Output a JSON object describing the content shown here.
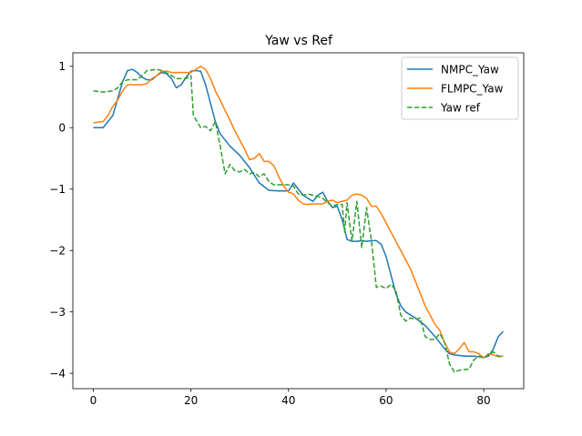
{
  "chart_data": {
    "type": "line",
    "title": "Yaw vs Ref",
    "xlabel": "",
    "ylabel": "",
    "xlim": [
      -4.2,
      88.2
    ],
    "ylim": [
      -4.25,
      1.22
    ],
    "xticks": [
      0,
      20,
      40,
      60,
      80
    ],
    "yticks": [
      1,
      0,
      -1,
      -2,
      -3,
      -4
    ],
    "xtick_labels": [
      "0",
      "20",
      "40",
      "60",
      "80"
    ],
    "ytick_labels": [
      "1",
      "0",
      "−1",
      "−2",
      "−3",
      "−4"
    ],
    "grid": false,
    "legend_position": "top-right",
    "series": [
      {
        "name": "NMPC_Yaw",
        "color": "#1f77b4",
        "style": "solid",
        "points": [
          [
            0,
            0.0
          ],
          [
            2,
            0.0
          ],
          [
            4,
            0.2
          ],
          [
            6,
            0.75
          ],
          [
            7,
            0.93
          ],
          [
            8,
            0.95
          ],
          [
            9,
            0.9
          ],
          [
            10,
            0.82
          ],
          [
            11,
            0.78
          ],
          [
            12,
            0.78
          ],
          [
            13,
            0.85
          ],
          [
            14,
            0.9
          ],
          [
            15,
            0.88
          ],
          [
            16,
            0.8
          ],
          [
            17,
            0.65
          ],
          [
            18,
            0.7
          ],
          [
            19,
            0.82
          ],
          [
            20,
            0.92
          ],
          [
            21,
            0.93
          ],
          [
            22,
            0.92
          ],
          [
            23,
            0.7
          ],
          [
            24,
            0.4
          ],
          [
            25,
            0.1
          ],
          [
            26,
            -0.1
          ],
          [
            28,
            -0.3
          ],
          [
            30,
            -0.45
          ],
          [
            32,
            -0.65
          ],
          [
            34,
            -0.9
          ],
          [
            36,
            -1.02
          ],
          [
            38,
            -1.03
          ],
          [
            40,
            -1.03
          ],
          [
            41,
            -0.9
          ],
          [
            42,
            -1.0
          ],
          [
            43,
            -1.1
          ],
          [
            44,
            -1.15
          ],
          [
            45,
            -1.2
          ],
          [
            46,
            -1.1
          ],
          [
            47,
            -1.05
          ],
          [
            48,
            -1.2
          ],
          [
            49,
            -1.3
          ],
          [
            50,
            -1.28
          ],
          [
            51,
            -1.5
          ],
          [
            52,
            -1.82
          ],
          [
            53,
            -1.85
          ],
          [
            54,
            -1.85
          ],
          [
            55,
            -1.84
          ],
          [
            56,
            -1.85
          ],
          [
            57,
            -1.84
          ],
          [
            58,
            -1.84
          ],
          [
            59,
            -1.9
          ],
          [
            60,
            -2.1
          ],
          [
            61,
            -2.4
          ],
          [
            62,
            -2.7
          ],
          [
            63,
            -2.9
          ],
          [
            64,
            -3.0
          ],
          [
            66,
            -3.1
          ],
          [
            68,
            -3.22
          ],
          [
            70,
            -3.4
          ],
          [
            71,
            -3.5
          ],
          [
            72,
            -3.6
          ],
          [
            73,
            -3.68
          ],
          [
            74,
            -3.7
          ],
          [
            76,
            -3.72
          ],
          [
            78,
            -3.72
          ],
          [
            80,
            -3.74
          ],
          [
            81,
            -3.72
          ],
          [
            82,
            -3.6
          ],
          [
            83,
            -3.4
          ],
          [
            84,
            -3.32
          ]
        ]
      },
      {
        "name": "FLMPC_Yaw",
        "color": "#ff7f0e",
        "style": "solid",
        "points": [
          [
            0,
            0.08
          ],
          [
            2,
            0.1
          ],
          [
            3,
            0.2
          ],
          [
            4,
            0.35
          ],
          [
            5,
            0.45
          ],
          [
            6,
            0.6
          ],
          [
            7,
            0.7
          ],
          [
            10,
            0.7
          ],
          [
            11,
            0.72
          ],
          [
            12,
            0.8
          ],
          [
            13,
            0.85
          ],
          [
            14,
            0.92
          ],
          [
            15,
            0.92
          ],
          [
            16,
            0.9
          ],
          [
            17,
            0.9
          ],
          [
            20,
            0.9
          ],
          [
            21,
            0.95
          ],
          [
            22,
            1.0
          ],
          [
            23,
            0.95
          ],
          [
            24,
            0.8
          ],
          [
            25,
            0.6
          ],
          [
            26,
            0.45
          ],
          [
            27,
            0.28
          ],
          [
            28,
            0.12
          ],
          [
            29,
            -0.05
          ],
          [
            30,
            -0.2
          ],
          [
            31,
            -0.35
          ],
          [
            32,
            -0.52
          ],
          [
            33,
            -0.5
          ],
          [
            34,
            -0.42
          ],
          [
            35,
            -0.55
          ],
          [
            36,
            -0.55
          ],
          [
            37,
            -0.62
          ],
          [
            38,
            -0.8
          ],
          [
            39,
            -0.95
          ],
          [
            40,
            -1.05
          ],
          [
            41,
            -1.08
          ],
          [
            42,
            -1.18
          ],
          [
            43,
            -1.24
          ],
          [
            44,
            -1.25
          ],
          [
            45,
            -1.24
          ],
          [
            46,
            -1.24
          ],
          [
            47,
            -1.24
          ],
          [
            48,
            -1.2
          ],
          [
            49,
            -1.18
          ],
          [
            50,
            -1.22
          ],
          [
            51,
            -1.2
          ],
          [
            52,
            -1.18
          ],
          [
            53,
            -1.1
          ],
          [
            54,
            -1.08
          ],
          [
            55,
            -1.1
          ],
          [
            56,
            -1.15
          ],
          [
            57,
            -1.28
          ],
          [
            58,
            -1.28
          ],
          [
            59,
            -1.4
          ],
          [
            60,
            -1.55
          ],
          [
            62,
            -1.85
          ],
          [
            64,
            -2.15
          ],
          [
            65,
            -2.3
          ],
          [
            66,
            -2.5
          ],
          [
            67,
            -2.7
          ],
          [
            68,
            -2.9
          ],
          [
            69,
            -3.05
          ],
          [
            70,
            -3.2
          ],
          [
            71,
            -3.3
          ],
          [
            72,
            -3.5
          ],
          [
            73,
            -3.65
          ],
          [
            74,
            -3.68
          ],
          [
            75,
            -3.6
          ],
          [
            76,
            -3.5
          ],
          [
            77,
            -3.65
          ],
          [
            78,
            -3.65
          ],
          [
            79,
            -3.68
          ],
          [
            80,
            -3.75
          ],
          [
            81,
            -3.68
          ],
          [
            82,
            -3.7
          ],
          [
            83,
            -3.73
          ],
          [
            84,
            -3.72
          ]
        ]
      },
      {
        "name": "Yaw ref",
        "color": "#2ca02c",
        "style": "dashed",
        "points": [
          [
            0,
            0.6
          ],
          [
            2,
            0.58
          ],
          [
            4,
            0.6
          ],
          [
            5,
            0.65
          ],
          [
            6,
            0.75
          ],
          [
            7,
            0.78
          ],
          [
            9,
            0.78
          ],
          [
            10,
            0.85
          ],
          [
            11,
            0.93
          ],
          [
            13,
            0.95
          ],
          [
            14,
            0.93
          ],
          [
            16,
            0.85
          ],
          [
            17,
            0.8
          ],
          [
            19,
            0.8
          ],
          [
            20,
            0.85
          ],
          [
            20.5,
            0.2
          ],
          [
            22,
            0.0
          ],
          [
            23,
            0.02
          ],
          [
            24,
            -0.05
          ],
          [
            25,
            0.1
          ],
          [
            26,
            -0.3
          ],
          [
            27,
            -0.75
          ],
          [
            28,
            -0.6
          ],
          [
            29,
            -0.7
          ],
          [
            30,
            -0.72
          ],
          [
            31,
            -0.68
          ],
          [
            32,
            -0.75
          ],
          [
            33,
            -0.73
          ],
          [
            34,
            -0.8
          ],
          [
            35,
            -0.75
          ],
          [
            36,
            -0.88
          ],
          [
            37,
            -0.93
          ],
          [
            40,
            -0.93
          ],
          [
            41,
            -0.95
          ],
          [
            42,
            -1.08
          ],
          [
            43,
            -1.1
          ],
          [
            44,
            -1.08
          ],
          [
            46,
            -1.12
          ],
          [
            47,
            -1.15
          ],
          [
            48,
            -1.22
          ],
          [
            49,
            -1.28
          ],
          [
            50,
            -1.25
          ],
          [
            51,
            -1.25
          ],
          [
            51.5,
            -1.7
          ],
          [
            52,
            -1.22
          ],
          [
            53,
            -1.85
          ],
          [
            54,
            -1.2
          ],
          [
            55,
            -1.95
          ],
          [
            56,
            -1.3
          ],
          [
            57,
            -1.85
          ],
          [
            58,
            -2.6
          ],
          [
            59,
            -2.58
          ],
          [
            60,
            -2.62
          ],
          [
            61,
            -2.55
          ],
          [
            62,
            -2.65
          ],
          [
            63,
            -3.05
          ],
          [
            64,
            -3.15
          ],
          [
            65,
            -3.1
          ],
          [
            66,
            -3.12
          ],
          [
            67,
            -3.1
          ],
          [
            68,
            -3.4
          ],
          [
            69,
            -3.45
          ],
          [
            70,
            -3.45
          ],
          [
            71,
            -3.35
          ],
          [
            72,
            -3.5
          ],
          [
            73,
            -3.85
          ],
          [
            74,
            -3.98
          ],
          [
            75,
            -3.95
          ],
          [
            77,
            -3.93
          ],
          [
            78,
            -3.78
          ],
          [
            79,
            -3.72
          ],
          [
            80,
            -3.75
          ],
          [
            81,
            -3.7
          ],
          [
            82,
            -3.65
          ],
          [
            83,
            -3.72
          ],
          [
            84,
            -3.72
          ]
        ]
      }
    ]
  }
}
